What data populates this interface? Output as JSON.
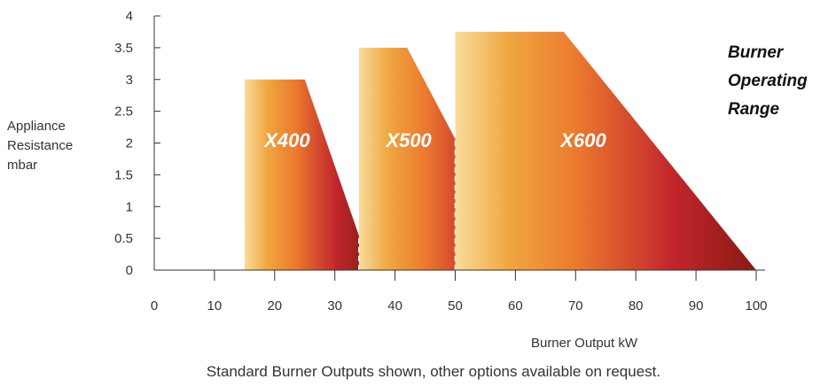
{
  "chart_data": {
    "type": "area",
    "title": "Burner Operating Range",
    "title_lines": [
      "Burner",
      "Operating",
      "Range"
    ],
    "xlabel": "Burner Output kW",
    "ylabel_lines": [
      "Appliance",
      "Resistance",
      "mbar"
    ],
    "xlim": [
      0,
      100
    ],
    "ylim": [
      0,
      4
    ],
    "x_ticks": [
      0,
      10,
      20,
      30,
      40,
      50,
      60,
      70,
      80,
      90,
      100
    ],
    "y_ticks": [
      {
        "value": 0,
        "label": "0"
      },
      {
        "value": 0.5,
        "label": "0.5"
      },
      {
        "value": 1,
        "label": "1"
      },
      {
        "value": 1.5,
        "label": "1.5"
      },
      {
        "value": 2,
        "label": "2"
      },
      {
        "value": 2.5,
        "label": "2.5"
      },
      {
        "value": 3,
        "label": "3"
      },
      {
        "value": 3.5,
        "label": "3.5"
      },
      {
        "value": 4,
        "label": "4"
      }
    ],
    "grid": false,
    "series": [
      {
        "name": "X400",
        "points": [
          [
            15,
            0
          ],
          [
            15,
            3.0
          ],
          [
            25,
            3.0
          ],
          [
            36,
            0
          ]
        ]
      },
      {
        "name": "X500",
        "points": [
          [
            34,
            0
          ],
          [
            34,
            3.5
          ],
          [
            42,
            3.5
          ],
          [
            61.5,
            0
          ]
        ]
      },
      {
        "name": "X600",
        "points": [
          [
            50,
            0
          ],
          [
            50,
            3.75
          ],
          [
            68,
            3.75
          ],
          [
            100,
            0
          ]
        ]
      }
    ],
    "reference_lines": [
      {
        "x": 34,
        "y_top": 0.55
      },
      {
        "x": 50,
        "y_top": 2.2
      }
    ],
    "gradient_colors": [
      "#f8dc9a",
      "#f0a640",
      "#ec7a2e",
      "#c2262c",
      "#8a1a14"
    ]
  },
  "footnote": "Standard Burner Outputs shown, other options available on request."
}
